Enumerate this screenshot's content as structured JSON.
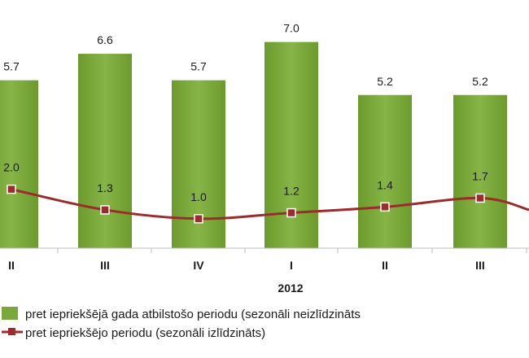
{
  "chart_data": {
    "type": "bar",
    "categories": [
      "II",
      "III",
      "IV",
      "I",
      "II",
      "III"
    ],
    "year_label": "2012",
    "series": [
      {
        "name": "pret iepriekšējā gada atbilstošo periodu (sezonāli neizlīdzināts",
        "type": "bar",
        "values": [
          5.7,
          6.6,
          5.7,
          7.0,
          5.2,
          5.2
        ],
        "value_labels": [
          "5.7",
          "6.6",
          "5.7",
          "7.0",
          "5.2",
          "5.2"
        ],
        "color": "#7aa83a"
      },
      {
        "name": "pret iepriekšējo periodu (sezonāli izlīdzināts)",
        "type": "line",
        "values": [
          2.0,
          1.3,
          1.0,
          1.2,
          1.4,
          1.7
        ],
        "value_labels": [
          "2.0",
          "1.3",
          "1.0",
          "1.2",
          "1.4",
          "1.7"
        ],
        "color": "#9b2c2c"
      }
    ],
    "line_continuation_value": 1.3,
    "grid": false,
    "legend_position": "bottom"
  }
}
